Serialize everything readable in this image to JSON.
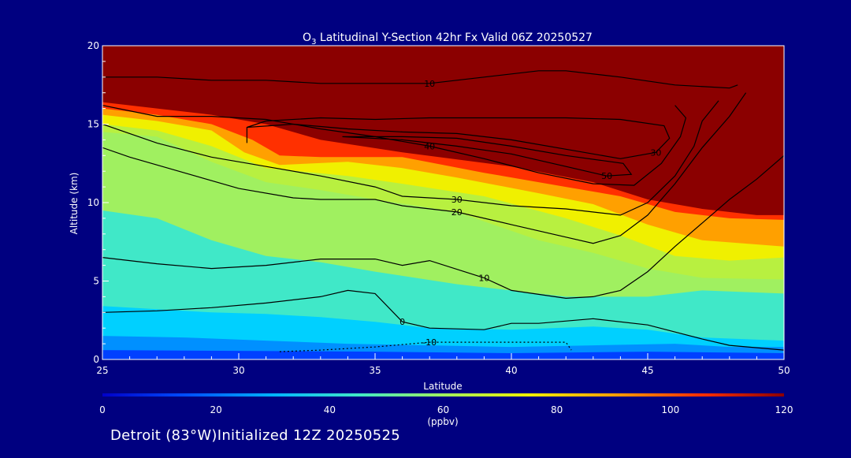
{
  "chart_data": {
    "type": "heatmap",
    "title_prefix": "O",
    "title_sub": "3",
    "title_rest": " Latitudinal Y-Section 42hr  Fx Valid 06Z 20250527",
    "xlabel": "Latitude",
    "ylabel": "Altitude (km)",
    "xlim": [
      25,
      50
    ],
    "ylim": [
      0,
      20
    ],
    "x_ticks": [
      "25",
      "30",
      "35",
      "40",
      "45",
      "50"
    ],
    "y_ticks": [
      "0",
      "5",
      "10",
      "15",
      "20"
    ],
    "colorbar": {
      "label": "(ppbv)",
      "range": [
        0,
        120
      ],
      "ticks": [
        "0",
        "20",
        "40",
        "60",
        "80",
        "100",
        "120"
      ],
      "colors": [
        "#0000c8",
        "#0050ff",
        "#00b4ff",
        "#40e8c8",
        "#a0f060",
        "#f0f000",
        "#ffa000",
        "#ff3000",
        "#8b0000"
      ]
    },
    "contours": [
      {
        "label": "0",
        "points": [
          [
            25,
            3.0
          ],
          [
            27,
            3.1
          ],
          [
            29,
            3.3
          ],
          [
            31,
            3.6
          ],
          [
            33,
            4.0
          ],
          [
            34,
            4.4
          ],
          [
            35,
            4.2
          ],
          [
            36,
            2.4
          ],
          [
            37,
            2.0
          ],
          [
            39,
            1.9
          ],
          [
            40,
            2.3
          ],
          [
            41,
            2.3
          ],
          [
            43,
            2.6
          ],
          [
            45,
            2.2
          ],
          [
            47,
            1.3
          ],
          [
            48,
            0.9
          ],
          [
            50,
            0.6
          ]
        ]
      },
      {
        "label": "10",
        "points": [
          [
            25,
            6.5
          ],
          [
            27,
            6.1
          ],
          [
            29,
            5.8
          ],
          [
            31,
            6.0
          ],
          [
            33,
            6.4
          ],
          [
            35,
            6.4
          ],
          [
            36,
            6.0
          ],
          [
            37,
            6.3
          ],
          [
            39,
            5.2
          ],
          [
            40,
            4.4
          ],
          [
            42,
            3.9
          ],
          [
            43,
            4.0
          ],
          [
            44,
            4.4
          ],
          [
            45,
            5.6
          ],
          [
            46,
            7.2
          ],
          [
            47,
            8.7
          ],
          [
            48,
            10.2
          ],
          [
            49,
            11.5
          ],
          [
            50,
            13.0
          ]
        ]
      },
      {
        "label": "20",
        "points": [
          [
            25,
            13.5
          ],
          [
            26,
            12.9
          ],
          [
            28,
            11.9
          ],
          [
            30,
            10.9
          ],
          [
            32,
            10.3
          ],
          [
            33,
            10.2
          ],
          [
            35,
            10.2
          ],
          [
            36,
            9.8
          ],
          [
            38,
            9.4
          ],
          [
            40,
            8.6
          ],
          [
            42,
            7.8
          ],
          [
            43,
            7.4
          ],
          [
            44,
            7.9
          ],
          [
            45,
            9.2
          ],
          [
            46,
            11.2
          ],
          [
            47,
            13.5
          ],
          [
            48,
            15.5
          ],
          [
            48.6,
            17.0
          ]
        ]
      },
      {
        "label": "30",
        "points": [
          [
            25,
            15.0
          ],
          [
            27,
            13.8
          ],
          [
            29,
            12.9
          ],
          [
            31,
            12.3
          ],
          [
            33,
            11.7
          ],
          [
            35,
            11.0
          ],
          [
            36,
            10.4
          ],
          [
            38,
            10.2
          ],
          [
            40,
            9.8
          ],
          [
            42,
            9.6
          ],
          [
            44,
            9.2
          ],
          [
            45,
            10.0
          ],
          [
            46,
            11.7
          ],
          [
            46.7,
            13.6
          ],
          [
            47,
            15.2
          ],
          [
            47.6,
            16.5
          ]
        ]
      },
      {
        "label": "40",
        "points": [
          [
            25,
            16.2
          ],
          [
            27,
            15.5
          ],
          [
            29,
            15.5
          ],
          [
            31,
            15.3
          ],
          [
            33,
            14.7
          ],
          [
            35,
            14.2
          ],
          [
            37,
            13.6
          ],
          [
            39,
            12.8
          ],
          [
            41,
            11.9
          ],
          [
            43,
            11.2
          ],
          [
            44.5,
            11.1
          ],
          [
            45.5,
            12.5
          ],
          [
            46.2,
            14.2
          ],
          [
            46.4,
            15.4
          ],
          [
            46,
            16.2
          ]
        ]
      },
      {
        "label": "30",
        "points": [
          [
            30.3,
            13.8
          ],
          [
            30.3,
            14.8
          ],
          [
            32,
            15.0
          ],
          [
            34,
            14.7
          ],
          [
            36,
            14.5
          ],
          [
            38,
            14.4
          ],
          [
            40,
            14.0
          ],
          [
            42,
            13.4
          ],
          [
            44,
            12.8
          ],
          [
            45.3,
            13.2
          ],
          [
            45.8,
            14.1
          ],
          [
            45.6,
            14.9
          ],
          [
            44,
            15.3
          ],
          [
            42,
            15.4
          ],
          [
            40,
            15.4
          ],
          [
            37,
            15.4
          ],
          [
            35,
            15.3
          ],
          [
            33,
            15.4
          ],
          [
            31,
            15.2
          ],
          [
            30.3,
            14.8
          ]
        ]
      },
      {
        "label": "50",
        "points": [
          [
            33.8,
            14.2
          ],
          [
            36,
            14.0
          ],
          [
            38,
            13.6
          ],
          [
            40,
            13.1
          ],
          [
            42,
            12.3
          ],
          [
            43.5,
            11.7
          ],
          [
            44.4,
            11.8
          ],
          [
            44.1,
            12.5
          ],
          [
            42,
            13.0
          ],
          [
            40,
            13.6
          ],
          [
            38,
            14.1
          ],
          [
            36,
            14.2
          ],
          [
            33.8,
            14.2
          ]
        ]
      },
      {
        "label": "10",
        "points": [
          [
            25,
            18.0
          ],
          [
            27,
            18.0
          ],
          [
            29,
            17.8
          ],
          [
            31,
            17.8
          ],
          [
            33,
            17.6
          ],
          [
            35,
            17.6
          ],
          [
            37,
            17.6
          ],
          [
            39,
            18.0
          ],
          [
            41,
            18.4
          ],
          [
            42,
            18.4
          ],
          [
            44,
            18.0
          ],
          [
            46,
            17.5
          ],
          [
            48,
            17.3
          ],
          [
            48.3,
            17.5
          ]
        ]
      },
      {
        "label": "-10",
        "dashed": true,
        "points": [
          [
            31.5,
            0.5
          ],
          [
            33,
            0.6
          ],
          [
            35,
            0.8
          ],
          [
            37,
            1.1
          ],
          [
            39,
            1.1
          ],
          [
            41,
            1.1
          ],
          [
            42,
            1.1
          ],
          [
            42.2,
            0.6
          ]
        ]
      }
    ]
  },
  "footer": "Detroit (83°W)Initialized 12Z 20250525"
}
